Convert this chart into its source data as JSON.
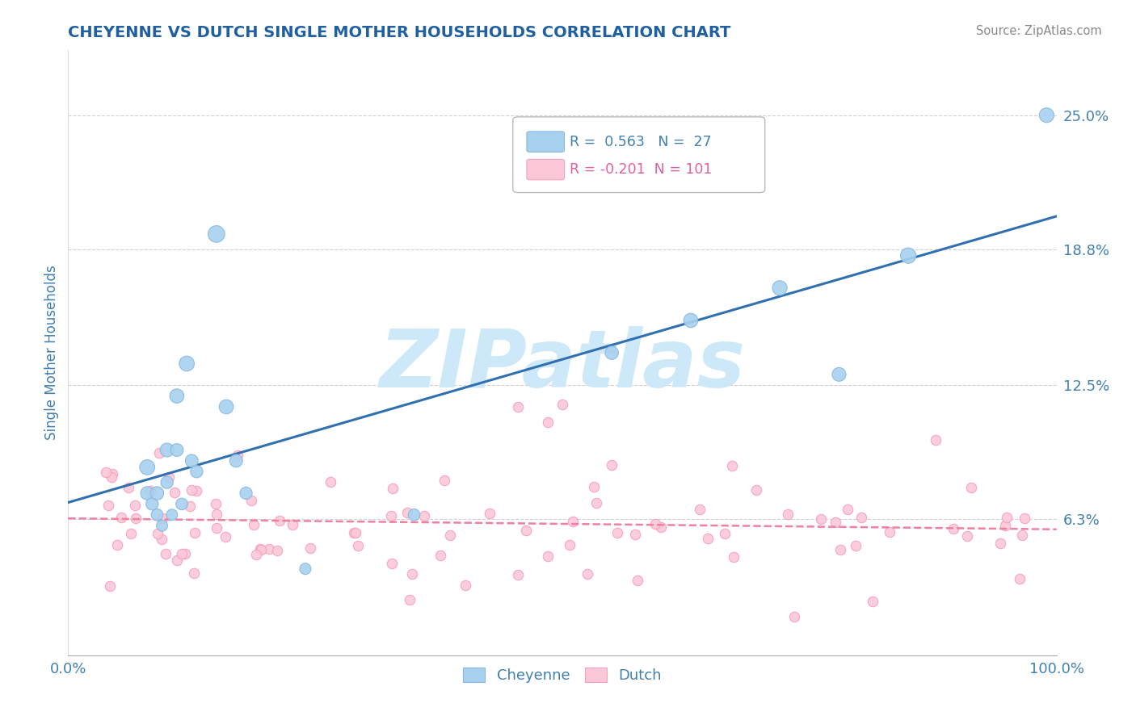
{
  "title": "CHEYENNE VS DUTCH SINGLE MOTHER HOUSEHOLDS CORRELATION CHART",
  "source": "Source: ZipAtlas.com",
  "ylabel": "Single Mother Households",
  "x_min": 0.0,
  "x_max": 1.0,
  "y_min": 0.0,
  "y_max": 0.28,
  "y_ticks": [
    0.0,
    0.063,
    0.125,
    0.188,
    0.25
  ],
  "y_tick_labels": [
    "",
    "6.3%",
    "12.5%",
    "18.8%",
    "25.0%"
  ],
  "x_ticks": [
    0.0,
    1.0
  ],
  "x_tick_labels": [
    "0.0%",
    "100.0%"
  ],
  "cheyenne_color": "#a8d1f0",
  "cheyenne_edge_color": "#88b8dc",
  "dutch_color": "#fcc8d8",
  "dutch_edge_color": "#f4a0bc",
  "cheyenne_line_color": "#3070b0",
  "dutch_line_color": "#f080a0",
  "legend_r_cheyenne": "0.563",
  "legend_n_cheyenne": "27",
  "legend_r_dutch": "-0.201",
  "legend_n_dutch": "101",
  "watermark_text": "ZIPatlas",
  "watermark_color": "#cde8f8",
  "cheyenne_points_x": [
    0.08,
    0.08,
    0.085,
    0.09,
    0.09,
    0.095,
    0.1,
    0.1,
    0.105,
    0.11,
    0.11,
    0.115,
    0.12,
    0.125,
    0.13,
    0.15,
    0.16,
    0.17,
    0.18,
    0.24,
    0.35,
    0.55,
    0.63,
    0.72,
    0.78,
    0.85,
    0.99
  ],
  "cheyenne_points_y": [
    0.087,
    0.075,
    0.07,
    0.075,
    0.065,
    0.06,
    0.095,
    0.08,
    0.065,
    0.12,
    0.095,
    0.07,
    0.135,
    0.09,
    0.085,
    0.195,
    0.115,
    0.09,
    0.075,
    0.04,
    0.065,
    0.14,
    0.155,
    0.17,
    0.13,
    0.185,
    0.25
  ],
  "cheyenne_sizes": [
    180,
    140,
    120,
    140,
    110,
    100,
    150,
    120,
    100,
    160,
    130,
    110,
    180,
    130,
    120,
    220,
    160,
    130,
    120,
    100,
    110,
    140,
    160,
    170,
    150,
    190,
    170
  ],
  "dutch_size": 80,
  "background_color": "#ffffff",
  "grid_color": "#d0d0d0",
  "title_color": "#2060a0",
  "axis_label_color": "#4080b0",
  "tick_label_color": "#4080b0",
  "source_color": "#888888"
}
